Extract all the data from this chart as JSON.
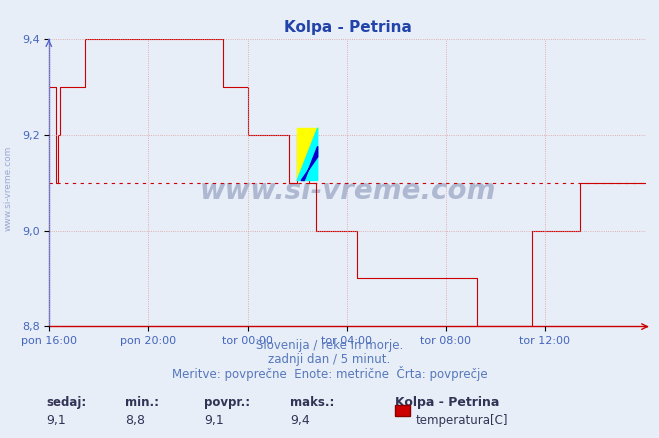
{
  "title": "Kolpa - Petrina",
  "title_color": "#2244aa",
  "bg_color": "#e8eef8",
  "plot_bg_color": "#e8eef8",
  "line_color": "#cc0000",
  "avg_line_color": "#cc0000",
  "avg_value": 9.1,
  "ylim": [
    8.8,
    9.4
  ],
  "yticks": [
    8.8,
    9.0,
    9.2,
    9.4
  ],
  "grid_color": "#dd9999",
  "xlabel_color": "#4466bb",
  "ylabel_color": "#4466bb",
  "axis_color": "#cc0000",
  "xtick_labels": [
    "pon 16:00",
    "pon 20:00",
    "tor 00:00",
    "tor 04:00",
    "tor 08:00",
    "tor 12:00"
  ],
  "subtitle1": "Slovenija / reke in morje.",
  "subtitle2": "zadnji dan / 5 minut.",
  "subtitle3": "Meritve: povprečne  Enote: metrične  Črta: povprečje",
  "footer_sedaj_label": "sedaj:",
  "footer_min_label": "min.:",
  "footer_povpr_label": "povpr.:",
  "footer_maks_label": "maks.:",
  "footer_sedaj": "9,1",
  "footer_min": "8,8",
  "footer_povpr": "9,1",
  "footer_maks": "9,4",
  "footer_station": "Kolpa - Petrina",
  "footer_series": "temperatura[C]",
  "watermark": "www.si-vreme.com",
  "temp_data": [
    9.3,
    9.3,
    9.3,
    9.1,
    9.2,
    9.3,
    9.3,
    9.3,
    9.3,
    9.3,
    9.3,
    9.3,
    9.3,
    9.3,
    9.3,
    9.3,
    9.3,
    9.4,
    9.4,
    9.4,
    9.4,
    9.4,
    9.4,
    9.4,
    9.4,
    9.4,
    9.4,
    9.4,
    9.4,
    9.4,
    9.4,
    9.4,
    9.4,
    9.4,
    9.4,
    9.4,
    9.4,
    9.4,
    9.4,
    9.4,
    9.4,
    9.4,
    9.4,
    9.4,
    9.4,
    9.4,
    9.4,
    9.4,
    9.4,
    9.4,
    9.4,
    9.4,
    9.4,
    9.4,
    9.4,
    9.4,
    9.4,
    9.4,
    9.4,
    9.4,
    9.4,
    9.4,
    9.4,
    9.4,
    9.4,
    9.4,
    9.4,
    9.4,
    9.4,
    9.4,
    9.4,
    9.4,
    9.4,
    9.4,
    9.4,
    9.4,
    9.4,
    9.4,
    9.4,
    9.4,
    9.4,
    9.4,
    9.4,
    9.4,
    9.3,
    9.3,
    9.3,
    9.3,
    9.3,
    9.3,
    9.3,
    9.3,
    9.3,
    9.3,
    9.3,
    9.3,
    9.2,
    9.2,
    9.2,
    9.2,
    9.2,
    9.2,
    9.2,
    9.2,
    9.2,
    9.2,
    9.2,
    9.2,
    9.2,
    9.2,
    9.2,
    9.2,
    9.2,
    9.2,
    9.2,
    9.2,
    9.1,
    9.1,
    9.1,
    9.1,
    9.2,
    9.2,
    9.2,
    9.2,
    9.2,
    9.2,
    9.1,
    9.1,
    9.1,
    9.0,
    9.0,
    9.0,
    9.0,
    9.0,
    9.0,
    9.0,
    9.0,
    9.0,
    9.0,
    9.0,
    9.0,
    9.0,
    9.0,
    9.0,
    9.0,
    9.0,
    9.0,
    9.0,
    9.0,
    8.9,
    8.9,
    8.9,
    8.9,
    8.9,
    8.9,
    8.9,
    8.9,
    8.9,
    8.9,
    8.9,
    8.9,
    8.9,
    8.9,
    8.9,
    8.9,
    8.9,
    8.9,
    8.9,
    8.9,
    8.9,
    8.9,
    8.9,
    8.9,
    8.9,
    8.9,
    8.9,
    8.9,
    8.9,
    8.9,
    8.9,
    8.9,
    8.9,
    8.9,
    8.9,
    8.9,
    8.9,
    8.9,
    8.9,
    8.9,
    8.9,
    8.9,
    8.9,
    8.9,
    8.9,
    8.9,
    8.9,
    8.9,
    8.9,
    8.9,
    8.9,
    8.9,
    8.9,
    8.9,
    8.9,
    8.9,
    8.9,
    8.9,
    8.8,
    8.8,
    8.8,
    8.8,
    8.8,
    8.8,
    8.8,
    8.8,
    8.8,
    8.8,
    8.8,
    8.8,
    8.8,
    8.8,
    8.8,
    8.8,
    8.8,
    8.8,
    8.8,
    8.8,
    8.8,
    8.8,
    8.8,
    8.8,
    8.8,
    8.8,
    8.8,
    9.0,
    9.0,
    9.0,
    9.0,
    9.0,
    9.0,
    9.0,
    9.0,
    9.0,
    9.0,
    9.0,
    9.0,
    9.0,
    9.0,
    9.0,
    9.0,
    9.0,
    9.0,
    9.0,
    9.0,
    9.0,
    9.0,
    9.0,
    9.1,
    9.1,
    9.1,
    9.1,
    9.1,
    9.1,
    9.1,
    9.1,
    9.1,
    9.1,
    9.1,
    9.1,
    9.1,
    9.1,
    9.1,
    9.1,
    9.1,
    9.1,
    9.1,
    9.1,
    9.1,
    9.1,
    9.1,
    9.1,
    9.1,
    9.1,
    9.1,
    9.1,
    9.1,
    9.1,
    9.1,
    9.1,
    9.1
  ]
}
